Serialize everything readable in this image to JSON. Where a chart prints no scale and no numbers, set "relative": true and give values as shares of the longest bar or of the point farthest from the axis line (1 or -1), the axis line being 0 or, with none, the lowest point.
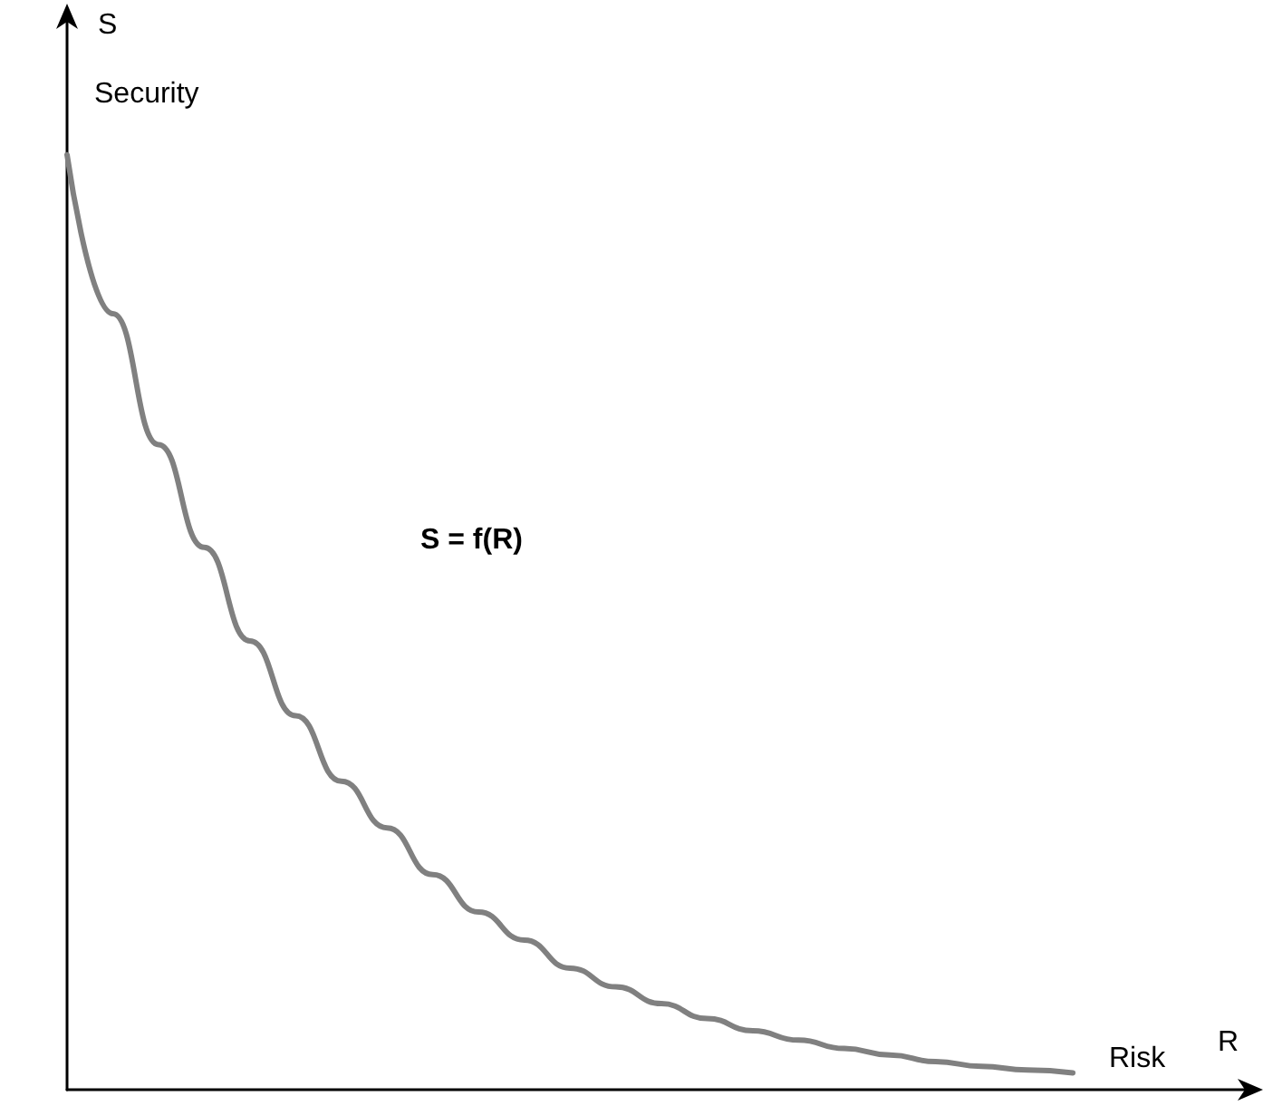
{
  "chart_data": {
    "type": "line",
    "relative": true,
    "xlabel": "R",
    "ylabel": "S",
    "annotations": [
      "Security",
      "S = f(R)",
      "Risk"
    ],
    "categories": [
      null,
      null,
      null,
      null,
      null,
      null,
      null,
      null,
      null,
      null,
      null,
      null,
      null,
      null,
      null,
      null,
      null,
      null,
      null,
      null,
      null,
      null,
      null,
      null,
      null,
      null,
      null
    ],
    "series": [
      {
        "color": "#808080",
        "values": [
          1.0,
          0.83,
          0.69,
          0.58,
          0.48,
          0.4,
          0.33,
          0.28,
          0.23,
          0.19,
          0.16,
          0.13,
          0.11,
          0.092,
          0.076,
          0.063,
          0.053,
          0.044,
          0.037,
          0.03,
          0.025,
          0.021,
          0.018,
          null,
          null,
          null,
          null
        ]
      }
    ],
    "grid": false,
    "marker": "none",
    "line_style": "solid"
  }
}
